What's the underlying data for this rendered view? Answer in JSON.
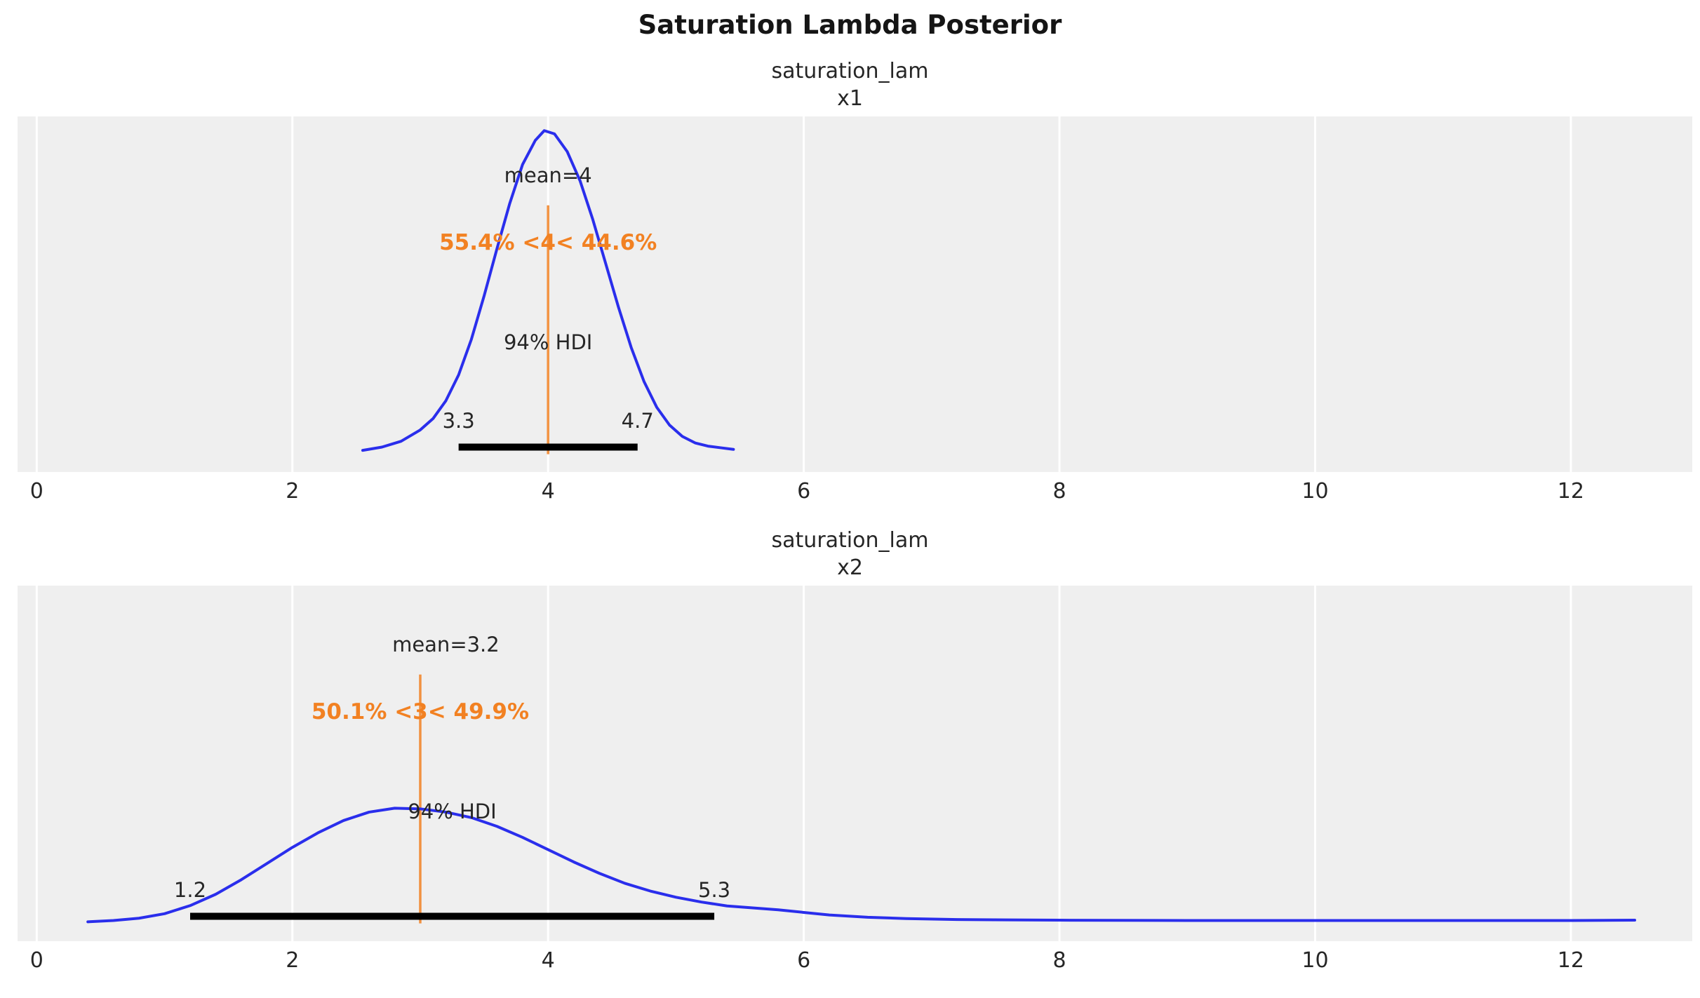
{
  "figure": {
    "title": "Saturation Lambda Posterior"
  },
  "colors": {
    "curve": "#2a2eec",
    "ref": "#f28122",
    "hdi_bar": "#000000",
    "panel_bg": "#efefef",
    "grid": "#ffffff",
    "text": "#262626"
  },
  "chart_data": [
    {
      "type": "density",
      "var_title": "saturation_lam",
      "coord_label": "x1",
      "mean": 4,
      "mean_label": "mean=4",
      "ref_val": 4,
      "ref_label": "55.4% <4< 44.6%",
      "hdi_label": "94% HDI",
      "hdi_lower": 3.3,
      "hdi_upper": 4.7,
      "hdi_lower_label": "3.3",
      "hdi_upper_label": "4.7",
      "xlim": [
        -0.15,
        12.95
      ],
      "xticks": [
        0,
        2,
        4,
        6,
        8,
        10,
        12
      ],
      "grid": true,
      "legend": "none",
      "curve_x": [
        2.55,
        2.7,
        2.85,
        3.0,
        3.1,
        3.2,
        3.3,
        3.4,
        3.5,
        3.6,
        3.7,
        3.8,
        3.9,
        3.97,
        4.05,
        4.15,
        4.25,
        4.35,
        4.45,
        4.55,
        4.65,
        4.75,
        4.85,
        4.95,
        5.05,
        5.15,
        5.25,
        5.35,
        5.45
      ],
      "curve_y": [
        0.012,
        0.022,
        0.04,
        0.075,
        0.11,
        0.165,
        0.245,
        0.355,
        0.49,
        0.635,
        0.775,
        0.895,
        0.97,
        1.0,
        0.99,
        0.935,
        0.845,
        0.725,
        0.59,
        0.455,
        0.33,
        0.225,
        0.145,
        0.09,
        0.055,
        0.035,
        0.025,
        0.02,
        0.015
      ]
    },
    {
      "type": "density",
      "var_title": "saturation_lam",
      "coord_label": "x2",
      "mean": 3.2,
      "mean_label": "mean=3.2",
      "ref_val": 3,
      "ref_label": "50.1% <3< 49.9%",
      "hdi_label": "94% HDI",
      "hdi_lower": 1.2,
      "hdi_upper": 5.3,
      "hdi_lower_label": "1.2",
      "hdi_upper_label": "5.3",
      "xlim": [
        -0.15,
        12.95
      ],
      "xticks": [
        0,
        2,
        4,
        6,
        8,
        10,
        12
      ],
      "grid": true,
      "legend": "none",
      "curve_x": [
        0.4,
        0.6,
        0.8,
        1.0,
        1.2,
        1.4,
        1.6,
        1.8,
        2.0,
        2.2,
        2.4,
        2.6,
        2.8,
        3.0,
        3.2,
        3.4,
        3.6,
        3.8,
        4.0,
        4.2,
        4.4,
        4.6,
        4.8,
        5.0,
        5.2,
        5.4,
        5.6,
        5.8,
        6.0,
        6.2,
        6.5,
        6.8,
        7.2,
        7.6,
        8.0,
        9.0,
        10.0,
        11.0,
        12.0,
        12.5
      ],
      "curve_y": [
        0.005,
        0.009,
        0.016,
        0.03,
        0.055,
        0.09,
        0.135,
        0.185,
        0.235,
        0.28,
        0.318,
        0.344,
        0.356,
        0.354,
        0.344,
        0.327,
        0.3,
        0.266,
        0.228,
        0.19,
        0.155,
        0.124,
        0.1,
        0.081,
        0.066,
        0.054,
        0.048,
        0.042,
        0.034,
        0.026,
        0.019,
        0.015,
        0.012,
        0.011,
        0.01,
        0.009,
        0.009,
        0.009,
        0.009,
        0.01
      ]
    }
  ]
}
